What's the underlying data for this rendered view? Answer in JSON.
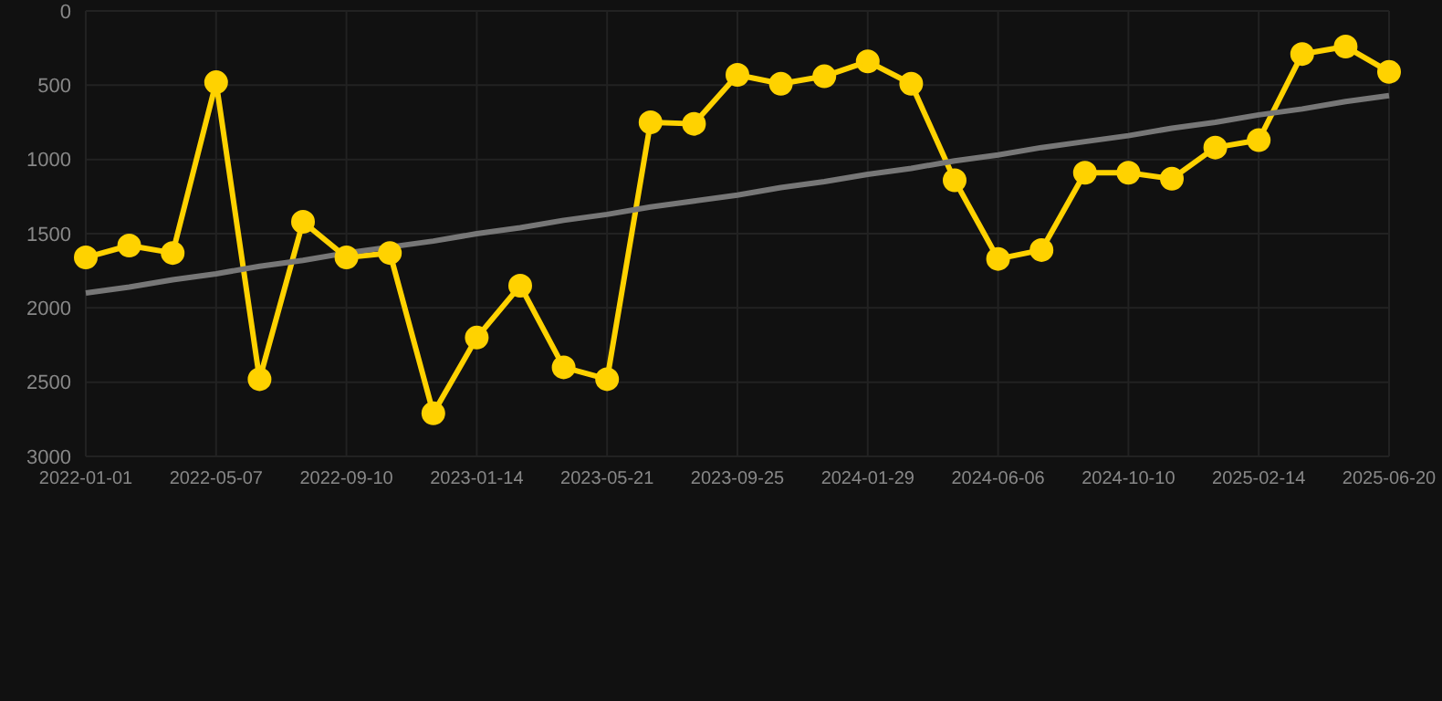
{
  "chart_data": {
    "type": "line",
    "categories": [
      "2022-01-01",
      null,
      null,
      "2022-05-07",
      null,
      null,
      "2022-09-10",
      null,
      null,
      "2023-01-14",
      null,
      null,
      "2023-05-21",
      null,
      null,
      "2023-09-25",
      null,
      null,
      "2024-01-29",
      null,
      null,
      "2024-06-06",
      null,
      null,
      "2024-10-10",
      null,
      null,
      "2025-02-14",
      null,
      null,
      "2025-06-20"
    ],
    "series": [
      {
        "color": "#ffd200",
        "values": [
          1660,
          1580,
          1630,
          480,
          2480,
          1420,
          1660,
          1630,
          2710,
          2200,
          1850,
          2400,
          2480,
          750,
          760,
          430,
          490,
          440,
          340,
          490,
          1140,
          1670,
          1610,
          1090,
          1090,
          1130,
          920,
          870,
          290,
          240,
          410
        ]
      },
      {
        "type": "line",
        "color": "#777777",
        "marker": "none",
        "values": [
          1900,
          1860,
          1810,
          1770,
          1720,
          1680,
          1630,
          1590,
          1550,
          1500,
          1460,
          1410,
          1370,
          1320,
          1280,
          1240,
          1190,
          1150,
          1100,
          1060,
          1010,
          970,
          920,
          880,
          840,
          790,
          750,
          700,
          660,
          610,
          570
        ]
      }
    ],
    "ylim": [
      3000,
      0
    ],
    "yticks": [
      0,
      500,
      1000,
      1500,
      2000,
      2500,
      3000
    ],
    "grid": true,
    "marker": "circle"
  }
}
